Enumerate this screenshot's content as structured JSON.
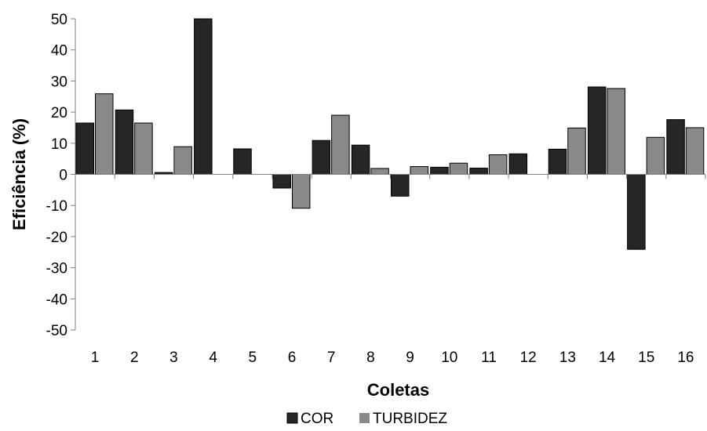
{
  "chart_data": {
    "type": "bar",
    "title": "",
    "xlabel": "Coletas",
    "ylabel": "Eficiência (%)",
    "ylim": [
      -50,
      50
    ],
    "yticks": [
      "50",
      "40",
      "30",
      "20",
      "10",
      "0",
      "-10",
      "-20",
      "-30",
      "-40",
      "-50"
    ],
    "categories": [
      "1",
      "2",
      "3",
      "4",
      "5",
      "6",
      "7",
      "8",
      "9",
      "10",
      "11",
      "12",
      "13",
      "14",
      "15",
      "16"
    ],
    "series": [
      {
        "name": "COR",
        "color": "#262626",
        "values": [
          16.5,
          20.7,
          0.6,
          50,
          8.2,
          -4.4,
          10.9,
          9.4,
          -7,
          2.3,
          2,
          6.6,
          8.1,
          28.1,
          -24.1,
          17.6
        ]
      },
      {
        "name": "TURBIDEZ",
        "color": "#898989",
        "values": [
          25.9,
          16.5,
          8.9,
          0,
          0,
          -10.9,
          19,
          1.9,
          2.5,
          3.6,
          6.3,
          0,
          14.9,
          27.6,
          11.9,
          15
        ]
      }
    ],
    "grid": false,
    "legend_position": "bottom"
  }
}
